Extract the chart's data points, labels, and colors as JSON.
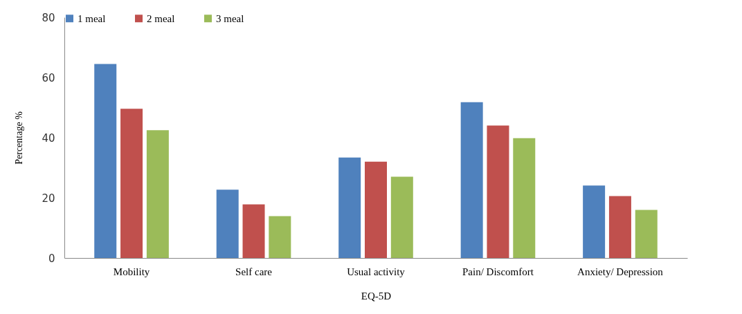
{
  "chart_data": {
    "type": "bar",
    "xlabel": "EQ-5D",
    "ylabel": "Percentage %",
    "categories": [
      "Mobility",
      "Self care",
      "Usual activity",
      "Pain/ Discomfort",
      "Anxiety/ Depression"
    ],
    "series": [
      {
        "name": "1 meal",
        "color": "#4f81bd",
        "values": [
          64.5,
          22.7,
          33.4,
          51.8,
          24.1
        ]
      },
      {
        "name": "2 meal",
        "color": "#c0504d",
        "values": [
          49.6,
          17.8,
          32.0,
          44.0,
          20.6
        ]
      },
      {
        "name": "3 meal",
        "color": "#9bbb59",
        "values": [
          42.5,
          13.9,
          27.0,
          39.8,
          16.0
        ]
      }
    ],
    "ylim": [
      0,
      80
    ],
    "yticks": [
      0,
      20,
      40,
      60,
      80
    ],
    "grid": false,
    "legend": "top"
  }
}
